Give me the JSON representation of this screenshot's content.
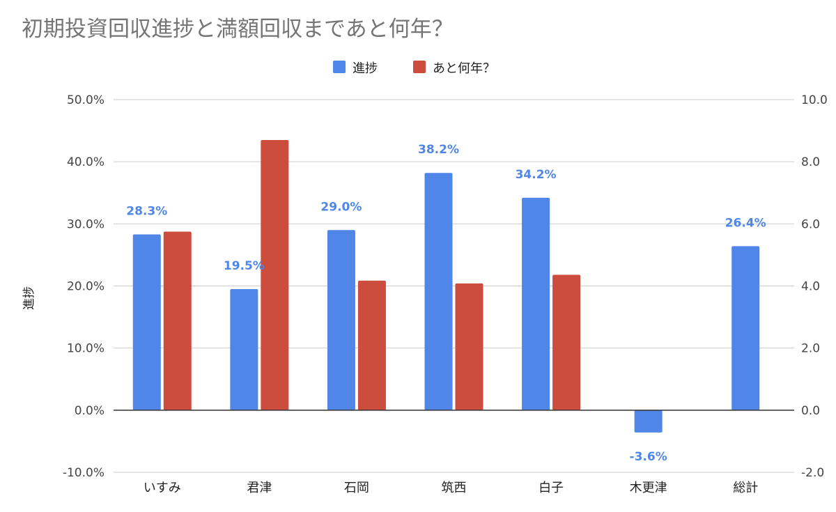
{
  "chart_data": {
    "type": "bar",
    "title": "初期投資回収進捗と満額回収まであと何年？",
    "ylabel": "進捗",
    "y2label": "",
    "categories": [
      "いすみ",
      "君津",
      "石岡",
      "筑西",
      "白子",
      "木更津",
      "総計"
    ],
    "series": [
      {
        "name": "進捗",
        "axis": "left",
        "color": "#4f86e8",
        "values": [
          0.283,
          0.195,
          0.29,
          0.382,
          0.342,
          -0.036,
          0.264
        ],
        "labels": [
          "28.3%",
          "19.5%",
          "29.0%",
          "38.2%",
          "34.2%",
          "-3.6%",
          "26.4%"
        ]
      },
      {
        "name": "あと何年？",
        "axis": "right",
        "color": "#cc4c3d",
        "values": [
          5.75,
          8.7,
          4.17,
          4.08,
          4.36,
          null,
          null
        ]
      }
    ],
    "ylim": [
      -0.1,
      0.5
    ],
    "y2lim": [
      -2.0,
      10.0
    ],
    "yticks": [
      "-10.0%",
      "0.0%",
      "10.0%",
      "20.0%",
      "30.0%",
      "40.0%",
      "50.0%"
    ],
    "y2ticks": [
      "-2.0",
      "0.0",
      "2.0",
      "4.0",
      "6.0",
      "8.0",
      "10.0"
    ],
    "legend_position": "top-center",
    "grid": true
  }
}
